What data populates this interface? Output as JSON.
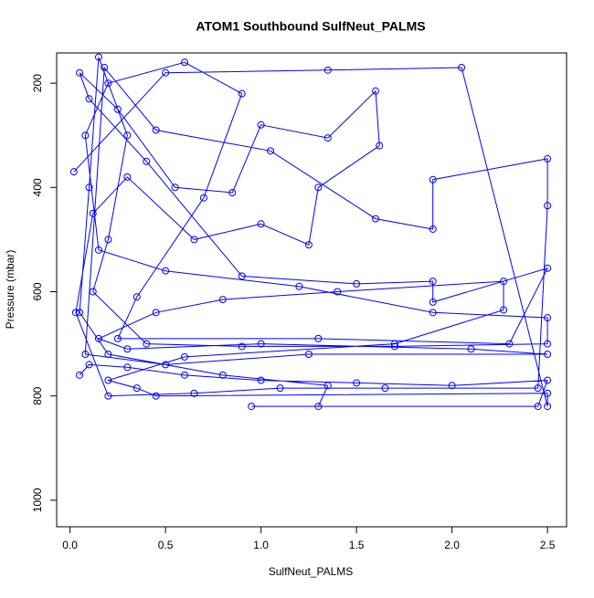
{
  "chart_data": {
    "type": "line",
    "title": "ATOM1 Southbound SulfNeut_PALMS",
    "x_label": "SulfNeut_PALMS",
    "y_label": "Pressure (mbar)",
    "markers": "open-circle",
    "y_inverted": true,
    "xlim": [
      -0.07,
      2.6
    ],
    "ylim": [
      142,
      1051
    ],
    "xticks": [
      {
        "value": 0,
        "label": "0.0"
      },
      0.5,
      {
        "value": 1,
        "label": "1.0"
      },
      1.5,
      {
        "value": 2,
        "label": "2.0"
      },
      2.5
    ],
    "yticks": [
      200,
      400,
      600,
      800,
      1000
    ],
    "x": [
      0.05,
      0.1,
      0.3,
      0.6,
      1.0,
      1.5,
      2.0,
      2.5,
      2.45,
      0.95,
      1.3,
      1.35,
      0.8,
      0.2,
      0.05,
      0.1,
      0.15,
      0.3,
      0.2,
      0.12,
      0.4,
      0.9,
      1.7,
      2.5,
      2.5,
      1.9,
      1.2,
      0.5,
      0.15,
      0.08,
      0.2,
      0.6,
      0.9,
      0.7,
      0.35,
      0.25,
      1.3,
      2.3,
      2.5,
      1.9,
      1.9,
      1.5,
      0.9,
      0.4,
      0.1,
      0.05,
      0.25,
      0.55,
      0.85,
      1.0,
      1.35,
      1.6,
      1.62,
      1.3,
      1.25,
      1.0,
      0.65,
      0.3,
      0.12,
      0.03,
      0.2,
      0.65,
      1.1,
      1.65,
      2.45,
      2.5,
      2.5,
      1.9,
      1.9,
      1.6,
      1.05,
      0.45,
      0.18,
      0.08,
      0.5,
      1.25,
      2.5,
      2.1,
      1.0,
      0.3,
      0.15,
      0.45,
      0.8,
      1.4,
      2.27,
      2.27,
      1.7,
      0.6,
      0.2,
      0.35,
      0.45,
      2.5,
      2.5,
      2.05,
      1.35,
      0.5,
      0.02
    ],
    "series": [
      {
        "color": "#0000ff",
        "values": [
          760,
          740,
          745,
          760,
          770,
          775,
          780,
          770,
          820,
          820,
          820,
          780,
          760,
          720,
          640,
          400,
          150,
          300,
          500,
          600,
          700,
          705,
          705,
          700,
          650,
          640,
          590,
          560,
          520,
          300,
          200,
          160,
          220,
          420,
          610,
          690,
          690,
          700,
          555,
          620,
          580,
          585,
          570,
          350,
          230,
          180,
          250,
          400,
          410,
          280,
          305,
          215,
          320,
          400,
          510,
          470,
          500,
          380,
          450,
          640,
          800,
          795,
          785,
          785,
          785,
          435,
          345,
          385,
          480,
          460,
          330,
          290,
          170,
          720,
          740,
          720,
          720,
          710,
          700,
          710,
          690,
          640,
          615,
          600,
          580,
          635,
          700,
          725,
          770,
          785,
          800,
          795,
          820,
          170,
          175,
          180,
          370
        ]
      }
    ]
  }
}
